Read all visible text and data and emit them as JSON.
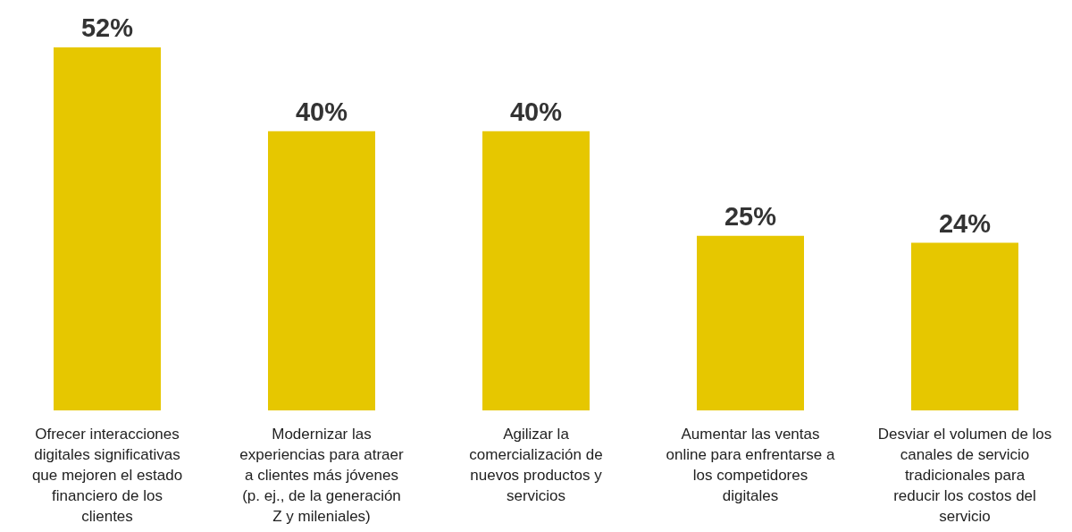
{
  "chart_data": {
    "type": "bar",
    "categories": [
      "Ofrecer interacciones digitales significativas que mejoren el estado financiero de los clientes",
      "Modernizar las experiencias para atraer a clientes más jóvenes (p. ej., de la generación Z y mileniales)",
      "Agilizar la comercialización de nuevos productos y servicios",
      "Aumentar las ventas online para enfrentarse a los competidores digitales",
      "Desviar el volumen de los canales de servicio tradicionales para reducir los costos del servicio"
    ],
    "values": [
      52,
      40,
      40,
      25,
      24
    ],
    "value_labels": [
      "52%",
      "40%",
      "40%",
      "25%",
      "24%"
    ],
    "color": "#e6c700",
    "grid": false,
    "legend": false
  }
}
